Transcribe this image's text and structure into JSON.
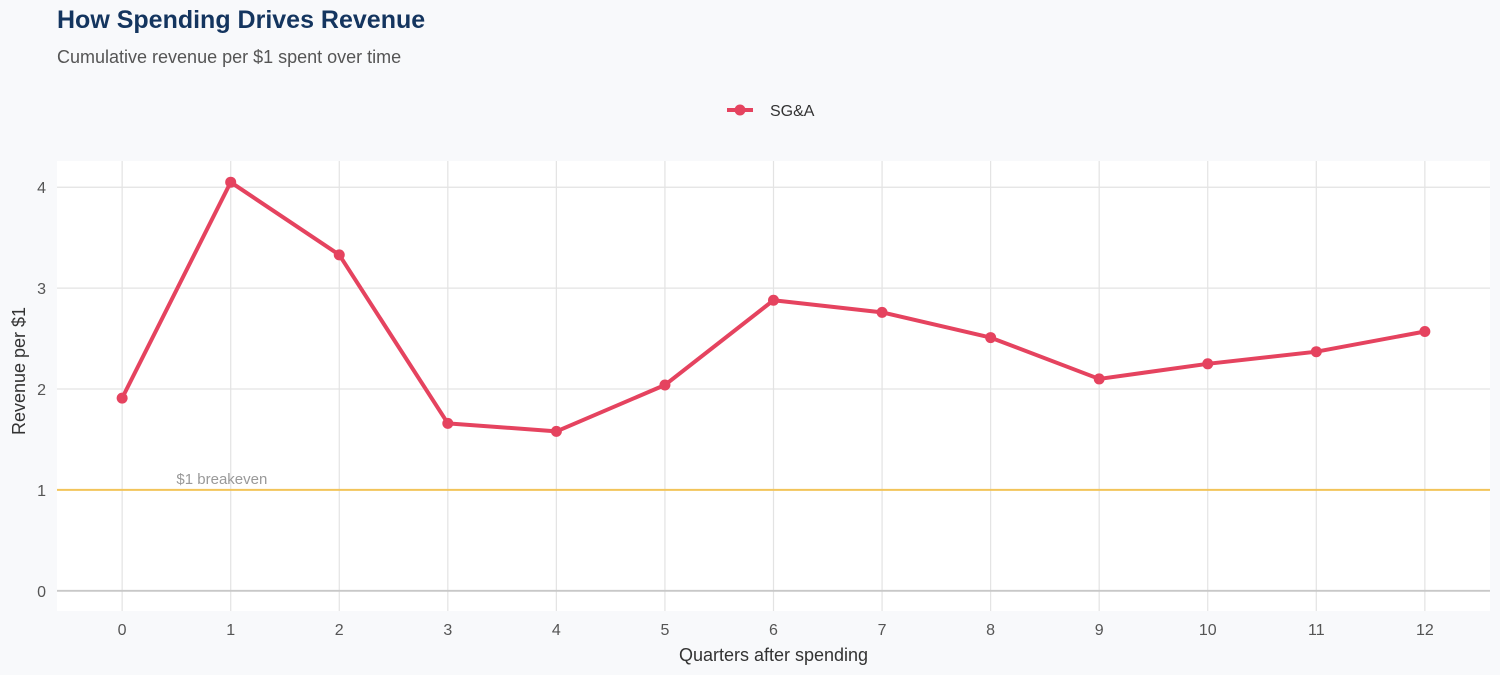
{
  "chart_data": {
    "type": "line",
    "title": "How Spending Drives Revenue",
    "subtitle": "Cumulative revenue per $1 spent over time",
    "xlabel": "Quarters after spending",
    "ylabel": "Revenue per $1",
    "xlim": [
      -0.6,
      12.6
    ],
    "ylim": [
      -0.2,
      4.26
    ],
    "x_ticks": [
      0,
      1,
      2,
      3,
      4,
      5,
      6,
      7,
      8,
      9,
      10,
      11,
      12
    ],
    "y_ticks": [
      0,
      1,
      2,
      3,
      4
    ],
    "grid": true,
    "legend_position": "top",
    "series": [
      {
        "name": "SG&A",
        "color": "#e5435f",
        "x": [
          0,
          1,
          2,
          3,
          4,
          5,
          6,
          7,
          8,
          9,
          10,
          11,
          12
        ],
        "values": [
          1.91,
          4.05,
          3.33,
          1.66,
          1.58,
          2.04,
          2.88,
          2.76,
          2.51,
          2.1,
          2.25,
          2.37,
          2.57
        ]
      }
    ],
    "reference_line": {
      "y": 1,
      "label": "$1 breakeven",
      "color": "#f2c45a"
    }
  }
}
